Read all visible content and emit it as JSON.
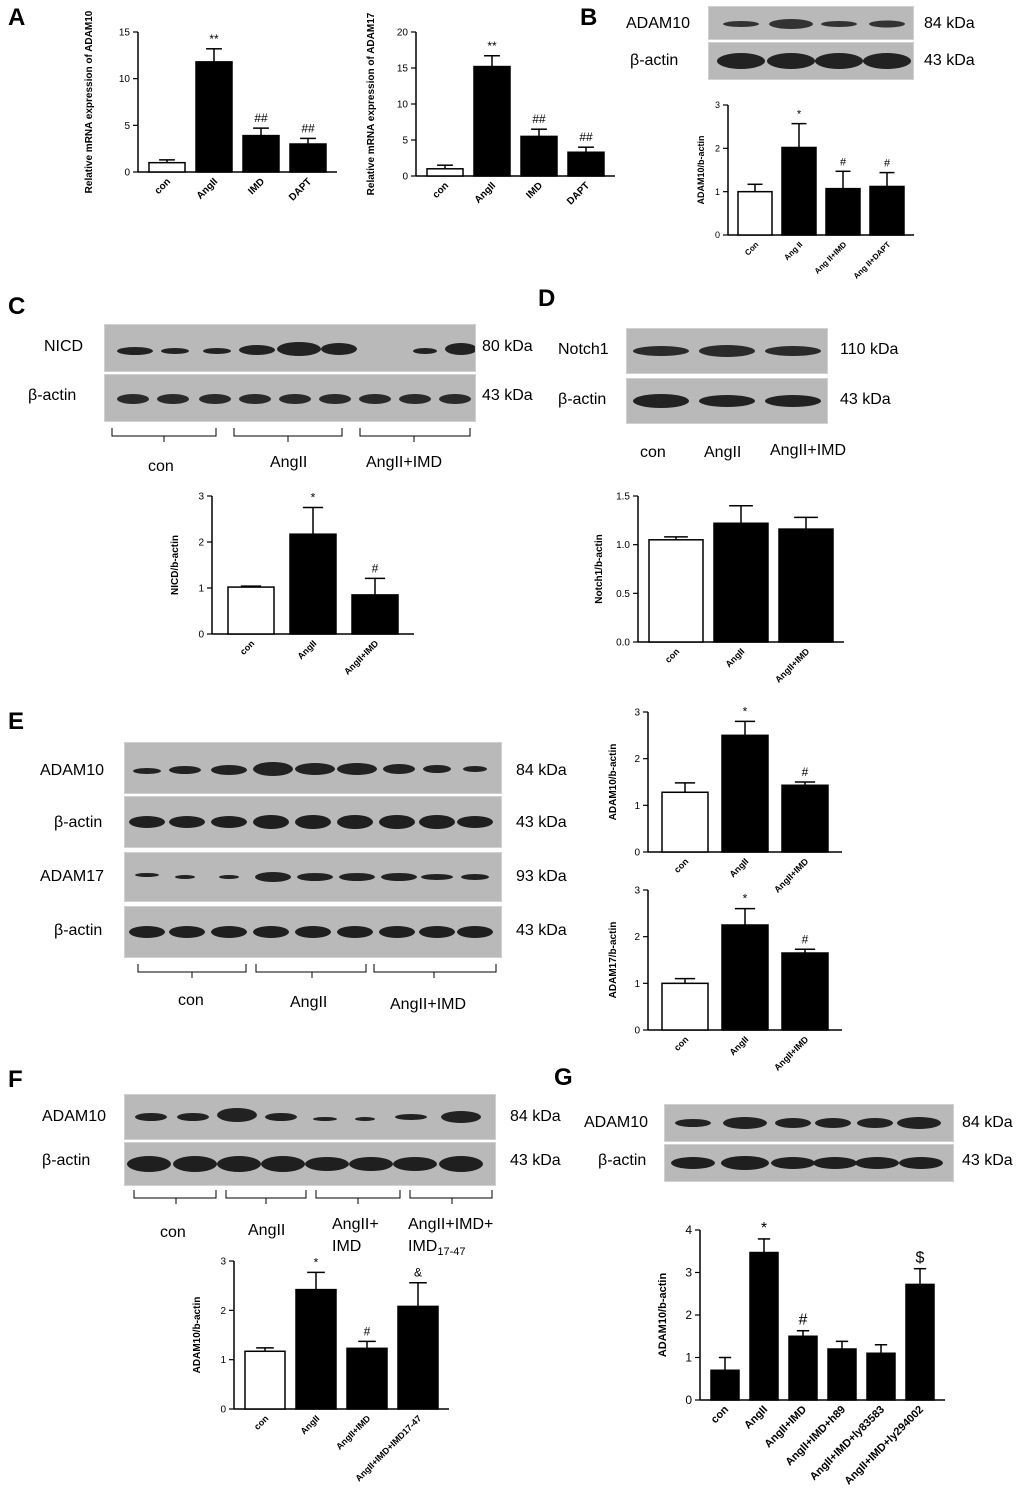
{
  "panels": {
    "A": {
      "letter": "A",
      "charts": [
        {
          "type": "bar",
          "ylabel": "Relative mRNA expression of ADAM10",
          "categories": [
            "con",
            "AngII",
            "IMD",
            "DAPT"
          ],
          "values": [
            1.0,
            11.8,
            3.9,
            3.0
          ],
          "errors": [
            0.3,
            1.4,
            0.8,
            0.6
          ],
          "annotations": [
            "",
            "**",
            "##",
            "##"
          ],
          "ylim": [
            0,
            15
          ],
          "yticks": [
            0,
            5,
            10,
            15
          ],
          "fills": [
            "#ffffff",
            "#000000",
            "#000000",
            "#000000"
          ]
        },
        {
          "type": "bar",
          "ylabel": "Relative mRNA expression of ADAM17",
          "categories": [
            "con",
            "AngII",
            "IMD",
            "DAPT"
          ],
          "values": [
            1.0,
            15.2,
            5.5,
            3.3
          ],
          "errors": [
            0.5,
            1.5,
            1.0,
            0.7
          ],
          "annotations": [
            "",
            "**",
            "##",
            "##"
          ],
          "ylim": [
            0,
            20
          ],
          "yticks": [
            0,
            5,
            10,
            15,
            20
          ],
          "fills": [
            "#ffffff",
            "#000000",
            "#000000",
            "#000000"
          ]
        }
      ]
    },
    "B": {
      "letter": "B",
      "blots": [
        {
          "label": "ADAM10",
          "kda": "84 kDa"
        },
        {
          "label": "β-actin",
          "kda": "43 kDa"
        }
      ],
      "chart": {
        "type": "bar",
        "ylabel": "ADAM10/b-actin",
        "categories": [
          "Con",
          "Ang II",
          "Ang II+IMD",
          "Ang II+DAPT"
        ],
        "values": [
          1.0,
          2.02,
          1.07,
          1.12
        ],
        "errors": [
          0.17,
          0.55,
          0.4,
          0.32
        ],
        "annotations": [
          "",
          "*",
          "#",
          "#"
        ],
        "ylim": [
          0,
          3
        ],
        "yticks": [
          0,
          1,
          2,
          3
        ],
        "fills": [
          "#ffffff",
          "#000000",
          "#000000",
          "#000000"
        ]
      }
    },
    "C": {
      "letter": "C",
      "blots": [
        {
          "label": "NICD",
          "kda": "80 kDa"
        },
        {
          "label": "β-actin",
          "kda": "43 kDa"
        }
      ],
      "groups": [
        "con",
        "AngII",
        "AngII+IMD"
      ],
      "chart": {
        "type": "bar",
        "ylabel": "NICD/b-actin",
        "categories": [
          "con",
          "AngII",
          "AngII+IMD"
        ],
        "values": [
          1.02,
          2.17,
          0.85
        ],
        "errors": [
          0.02,
          0.58,
          0.36
        ],
        "annotations": [
          "",
          "*",
          "#"
        ],
        "ylim": [
          0,
          3
        ],
        "yticks": [
          0,
          1,
          2,
          3
        ],
        "fills": [
          "#ffffff",
          "#000000",
          "#000000"
        ]
      }
    },
    "D": {
      "letter": "D",
      "blots": [
        {
          "label": "Notch1",
          "kda": "110 kDa"
        },
        {
          "label": "β-actin",
          "kda": "43 kDa"
        }
      ],
      "groups": [
        "con",
        "AngII",
        "AngII+IMD"
      ],
      "chart": {
        "type": "bar",
        "ylabel": "Notch1/b-actin",
        "categories": [
          "con",
          "AngII",
          "AngII+IMD"
        ],
        "values": [
          1.05,
          1.22,
          1.16
        ],
        "errors": [
          0.03,
          0.18,
          0.12
        ],
        "annotations": [
          "",
          "",
          ""
        ],
        "ylim": [
          0,
          1.5
        ],
        "yticks": [
          "0.0",
          "0.5",
          "1.0",
          "1.5"
        ],
        "fills": [
          "#ffffff",
          "#000000",
          "#000000"
        ]
      }
    },
    "E": {
      "letter": "E",
      "blots": [
        {
          "label": "ADAM10",
          "kda": "84 kDa"
        },
        {
          "label": "β-actin",
          "kda": "43 kDa"
        },
        {
          "label": "ADAM17",
          "kda": "93 kDa"
        },
        {
          "label": "β-actin",
          "kda": "43 kDa"
        }
      ],
      "groups": [
        "con",
        "AngII",
        "AngII+IMD"
      ],
      "charts": [
        {
          "type": "bar",
          "ylabel": "ADAM10/b-actin",
          "categories": [
            "con",
            "AngII",
            "AngII+IMD"
          ],
          "values": [
            1.28,
            2.5,
            1.43
          ],
          "errors": [
            0.2,
            0.3,
            0.07
          ],
          "annotations": [
            "",
            "*",
            "#"
          ],
          "ylim": [
            0,
            3
          ],
          "yticks": [
            0,
            1,
            2,
            3
          ],
          "fills": [
            "#ffffff",
            "#000000",
            "#000000"
          ]
        },
        {
          "type": "bar",
          "ylabel": "ADAM17/b-actin",
          "categories": [
            "con",
            "AngII",
            "AngII+IMD"
          ],
          "values": [
            1.0,
            2.25,
            1.65
          ],
          "errors": [
            0.1,
            0.35,
            0.08
          ],
          "annotations": [
            "",
            "*",
            "#"
          ],
          "ylim": [
            0,
            3
          ],
          "yticks": [
            0,
            1,
            2,
            3
          ],
          "fills": [
            "#ffffff",
            "#000000",
            "#000000"
          ]
        }
      ]
    },
    "F": {
      "letter": "F",
      "blots": [
        {
          "label": "ADAM10",
          "kda": "84 kDa"
        },
        {
          "label": "β-actin",
          "kda": "43 kDa"
        }
      ],
      "groups": [
        "con",
        "AngII",
        "AngII+\nIMD",
        "AngII+IMD+\nIMD17-47"
      ],
      "group_subscript": "17-47",
      "chart": {
        "type": "bar",
        "ylabel": "ADAM10/b-actin",
        "categories": [
          "con",
          "AngII",
          "AngII+IMD",
          "AngII+IMD+IMD17-47"
        ],
        "values": [
          1.17,
          2.42,
          1.23,
          2.08
        ],
        "errors": [
          0.07,
          0.35,
          0.14,
          0.48
        ],
        "annotations": [
          "",
          "*",
          "#",
          "&"
        ],
        "ylim": [
          0,
          3
        ],
        "yticks": [
          0,
          1,
          2,
          3
        ],
        "fills": [
          "#ffffff",
          "#000000",
          "#000000",
          "#000000"
        ]
      }
    },
    "G": {
      "letter": "G",
      "blots": [
        {
          "label": "ADAM10",
          "kda": "84 kDa"
        },
        {
          "label": "β-actin",
          "kda": "43 kDa"
        }
      ],
      "chart": {
        "type": "bar",
        "ylabel": "ADAM10/b-actin",
        "categories": [
          "con",
          "AngII",
          "AngII+IMD",
          "AngII+IMD+h89",
          "AngII+IMD+ly83583",
          "AngII+IMD+ly294002"
        ],
        "values": [
          0.7,
          3.47,
          1.5,
          1.2,
          1.1,
          2.72
        ],
        "errors": [
          0.3,
          0.32,
          0.13,
          0.18,
          0.2,
          0.37
        ],
        "annotations": [
          "",
          "*",
          "#",
          "",
          "",
          "$"
        ],
        "ylim": [
          0,
          4
        ],
        "yticks": [
          0,
          1,
          2,
          3,
          4
        ],
        "fills": [
          "#000000",
          "#000000",
          "#000000",
          "#000000",
          "#000000",
          "#000000"
        ]
      }
    }
  }
}
